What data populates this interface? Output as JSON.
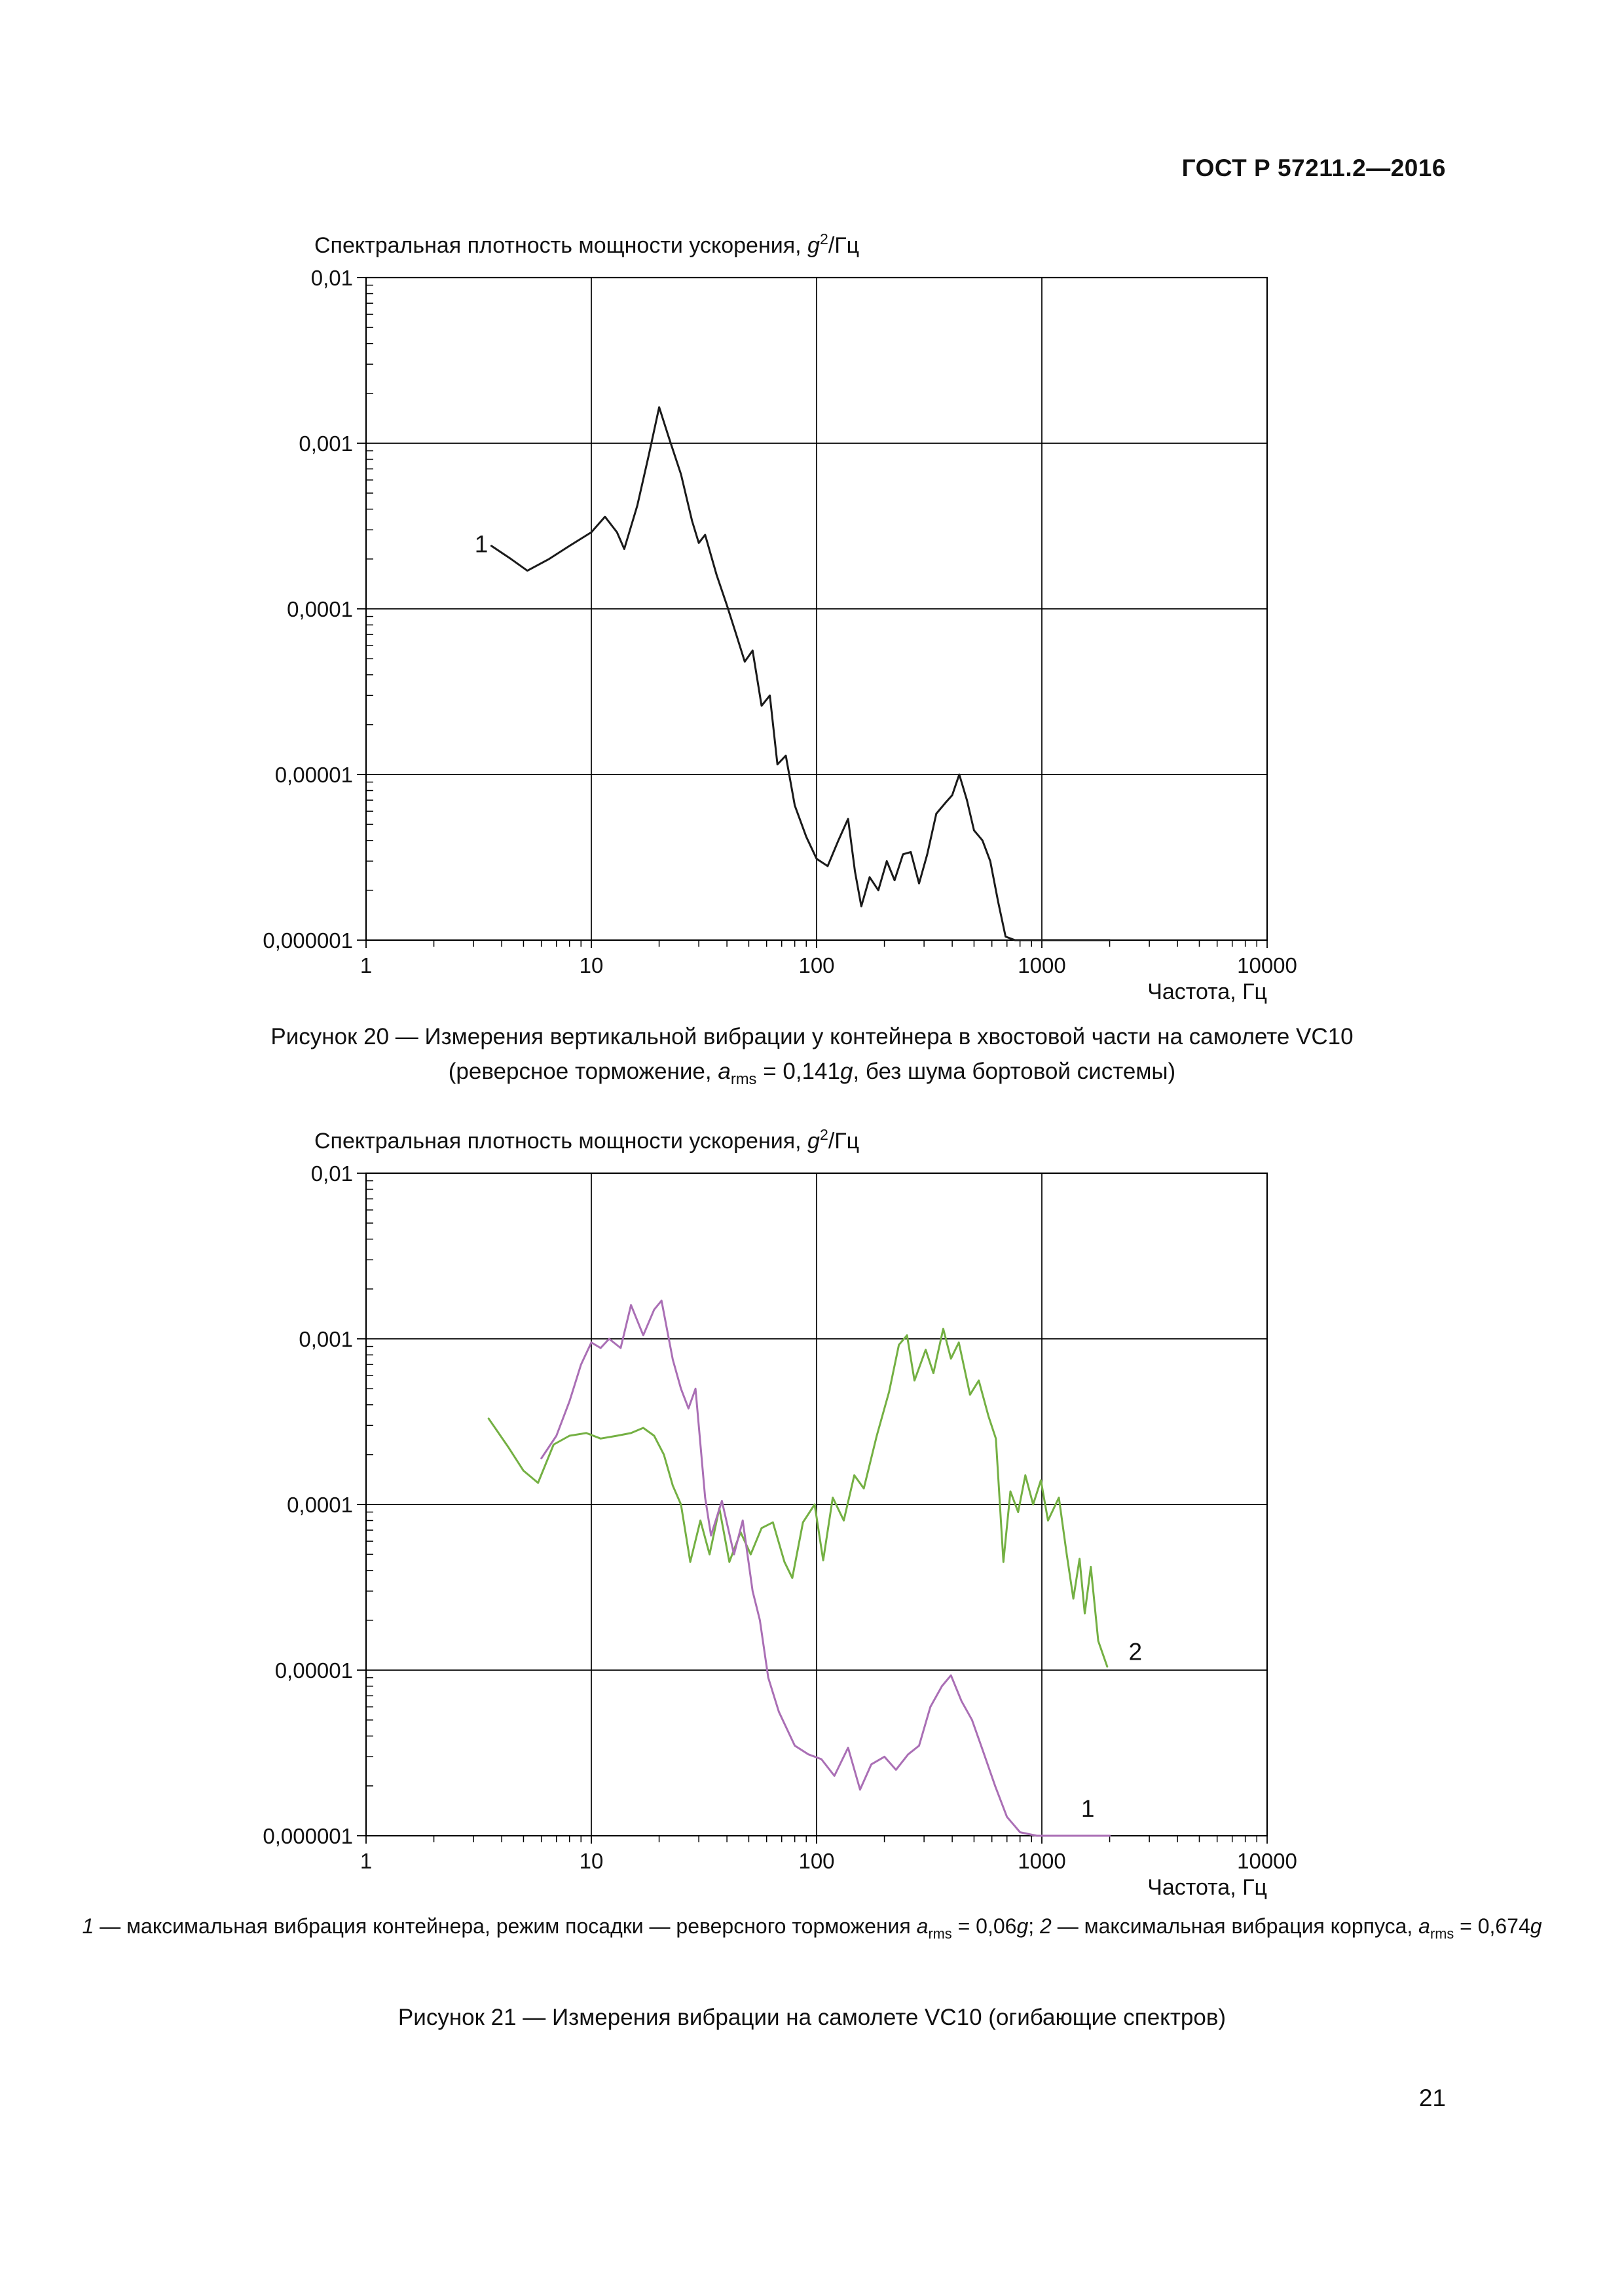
{
  "page": {
    "header": "ГОСТ Р 57211.2—2016",
    "page_number": "21"
  },
  "chart_title": {
    "text": "Спектральная плотность мощности ускорения, ",
    "var": "g",
    "sup": "2",
    "unit": "/Гц"
  },
  "figure20": {
    "caption_line1": "Рисунок 20 — Измерения вертикальной вибрации у контейнера в хвостовой части на самолете VC10",
    "caption2": {
      "p1": "(реверсное торможение, ",
      "a": "a",
      "sub": "rms",
      "p2": " = 0,141",
      "g": "g",
      "p3": ", без шума бортовой системы)"
    }
  },
  "figure21": {
    "legend": {
      "n1": "1",
      "t1": " — максимальная вибрация контейнера, режим посадки — реверсного торможения ",
      "a1": "a",
      "sub1": "rms",
      "v1": " = 0,06",
      "g1": "g",
      "sep": "; ",
      "n2": "2",
      "t2": " — максимальная вибрация корпуса, ",
      "a2": "a",
      "sub2": "rms",
      "v2": " = 0,674",
      "g2": "g"
    },
    "caption": "Рисунок 21 — Измерения вибрации на самолете VC10 (огибающие спектров)"
  },
  "chart_data": [
    {
      "type": "line",
      "title": "Спектральная плотность мощности ускорения, g²/Гц",
      "xlabel": "Частота, Гц",
      "ylabel": "Спектральная плотность мощности ускорения, g²/Гц",
      "xscale": "log",
      "yscale": "log",
      "xlim": [
        1,
        10000
      ],
      "ylim": [
        1e-06,
        0.01
      ],
      "x_ticks": [
        "1",
        "10",
        "100",
        "1000",
        "10000"
      ],
      "y_ticks": [
        "0,01",
        "0,001",
        "0,0001",
        "0,00001",
        "0,000001"
      ],
      "grid": true,
      "legend_position": "none",
      "series": [
        {
          "name": "1",
          "color": "#1a1a1a",
          "points": [
            [
              3.6,
              0.00024
            ],
            [
              4.4,
              0.0002
            ],
            [
              5.2,
              0.00017
            ],
            [
              6.5,
              0.0002
            ],
            [
              8,
              0.00024
            ],
            [
              10,
              0.00029
            ],
            [
              11.5,
              0.00036
            ],
            [
              13,
              0.00029
            ],
            [
              14,
              0.00023
            ],
            [
              16,
              0.00042
            ],
            [
              18,
              0.00085
            ],
            [
              20,
              0.00165
            ],
            [
              22,
              0.0011
            ],
            [
              25,
              0.00065
            ],
            [
              28,
              0.00034
            ],
            [
              30,
              0.00025
            ],
            [
              32,
              0.00028
            ],
            [
              36,
              0.00016
            ],
            [
              40,
              0.000105
            ],
            [
              44,
              7e-05
            ],
            [
              48,
              4.8e-05
            ],
            [
              52,
              5.6e-05
            ],
            [
              57,
              2.6e-05
            ],
            [
              62,
              3e-05
            ],
            [
              67,
              1.15e-05
            ],
            [
              73,
              1.3e-05
            ],
            [
              80,
              6.5e-06
            ],
            [
              90,
              4.2e-06
            ],
            [
              100,
              3.1e-06
            ],
            [
              112,
              2.8e-06
            ],
            [
              125,
              4e-06
            ],
            [
              138,
              5.4e-06
            ],
            [
              148,
              2.6e-06
            ],
            [
              158,
              1.6e-06
            ],
            [
              172,
              2.4e-06
            ],
            [
              188,
              2e-06
            ],
            [
              205,
              3e-06
            ],
            [
              222,
              2.3e-06
            ],
            [
              242,
              3.3e-06
            ],
            [
              262,
              3.4e-06
            ],
            [
              285,
              2.2e-06
            ],
            [
              310,
              3.3e-06
            ],
            [
              340,
              5.8e-06
            ],
            [
              375,
              6.8e-06
            ],
            [
              400,
              7.5e-06
            ],
            [
              430,
              1e-05
            ],
            [
              465,
              7e-06
            ],
            [
              500,
              4.6e-06
            ],
            [
              545,
              4e-06
            ],
            [
              590,
              3e-06
            ],
            [
              640,
              1.7e-06
            ],
            [
              690,
              1.05e-06
            ],
            [
              760,
              1e-06
            ],
            [
              900,
              1e-06
            ],
            [
              1200,
              1e-06
            ],
            [
              1600,
              1e-06
            ],
            [
              2000,
              1e-06
            ]
          ]
        }
      ],
      "annotations": [
        {
          "text": "1",
          "x": 3.25,
          "y": 0.00022
        }
      ]
    },
    {
      "type": "line",
      "title": "Спектральная плотность мощности ускорения, g²/Гц",
      "xlabel": "Частота, Гц",
      "ylabel": "Спектральная плотность мощности ускорения, g²/Гц",
      "xscale": "log",
      "yscale": "log",
      "xlim": [
        1,
        10000
      ],
      "ylim": [
        1e-06,
        0.01
      ],
      "x_ticks": [
        "1",
        "10",
        "100",
        "1000",
        "10000"
      ],
      "y_ticks": [
        "0,01",
        "0,001",
        "0,0001",
        "0,00001",
        "0,000001"
      ],
      "grid": true,
      "legend_position": "none",
      "series": [
        {
          "name": "2",
          "color": "#74b043",
          "points": [
            [
              3.5,
              0.00033
            ],
            [
              4.3,
              0.00022
            ],
            [
              5,
              0.00016
            ],
            [
              5.8,
              0.000135
            ],
            [
              6.8,
              0.00023
            ],
            [
              8,
              0.00026
            ],
            [
              9.5,
              0.00027
            ],
            [
              11,
              0.00025
            ],
            [
              13,
              0.00026
            ],
            [
              15,
              0.00027
            ],
            [
              17,
              0.00029
            ],
            [
              19,
              0.00026
            ],
            [
              21,
              0.0002
            ],
            [
              23,
              0.00013
            ],
            [
              25,
              0.0001
            ],
            [
              27.5,
              4.5e-05
            ],
            [
              30.5,
              8e-05
            ],
            [
              33.5,
              5e-05
            ],
            [
              37,
              9.5e-05
            ],
            [
              41,
              4.5e-05
            ],
            [
              46,
              6.8e-05
            ],
            [
              51,
              5e-05
            ],
            [
              57,
              7.2e-05
            ],
            [
              64,
              7.8e-05
            ],
            [
              72,
              4.5e-05
            ],
            [
              78,
              3.6e-05
            ],
            [
              87,
              7.8e-05
            ],
            [
              98,
              0.0001
            ],
            [
              107,
              4.6e-05
            ],
            [
              118,
              0.00011
            ],
            [
              132,
              8e-05
            ],
            [
              147,
              0.00015
            ],
            [
              162,
              0.000125
            ],
            [
              185,
              0.00026
            ],
            [
              210,
              0.00048
            ],
            [
              232,
              0.00092
            ],
            [
              252,
              0.00105
            ],
            [
              272,
              0.00056
            ],
            [
              305,
              0.00086
            ],
            [
              330,
              0.00062
            ],
            [
              365,
              0.00115
            ],
            [
              395,
              0.00076
            ],
            [
              428,
              0.00095
            ],
            [
              480,
              0.00046
            ],
            [
              525,
              0.00056
            ],
            [
              580,
              0.00034
            ],
            [
              625,
              0.00025
            ],
            [
              675,
              4.5e-05
            ],
            [
              725,
              0.00012
            ],
            [
              785,
              9e-05
            ],
            [
              845,
              0.00015
            ],
            [
              915,
              0.0001
            ],
            [
              990,
              0.00014
            ],
            [
              1065,
              8e-05
            ],
            [
              1190,
              0.00011
            ],
            [
              1290,
              5e-05
            ],
            [
              1380,
              2.7e-05
            ],
            [
              1470,
              4.7e-05
            ],
            [
              1550,
              2.2e-05
            ],
            [
              1650,
              4.2e-05
            ],
            [
              1780,
              1.5e-05
            ],
            [
              1950,
              1.05e-05
            ]
          ]
        },
        {
          "name": "1",
          "color": "#aa6fb5",
          "points": [
            [
              6,
              0.00019
            ],
            [
              7,
              0.00026
            ],
            [
              8,
              0.00042
            ],
            [
              9,
              0.0007
            ],
            [
              10,
              0.00095
            ],
            [
              11,
              0.00088
            ],
            [
              12,
              0.001
            ],
            [
              13.5,
              0.00088
            ],
            [
              15,
              0.0016
            ],
            [
              17,
              0.00105
            ],
            [
              19,
              0.0015
            ],
            [
              20.5,
              0.0017
            ],
            [
              23,
              0.00075
            ],
            [
              25,
              0.0005
            ],
            [
              27,
              0.00038
            ],
            [
              29,
              0.0005
            ],
            [
              32,
              0.00011
            ],
            [
              34,
              6.5e-05
            ],
            [
              38,
              0.000105
            ],
            [
              43,
              5e-05
            ],
            [
              47,
              8e-05
            ],
            [
              52,
              3e-05
            ],
            [
              56,
              2e-05
            ],
            [
              61,
              9e-06
            ],
            [
              68,
              5.6e-06
            ],
            [
              80,
              3.5e-06
            ],
            [
              92,
              3.1e-06
            ],
            [
              105,
              2.9e-06
            ],
            [
              120,
              2.3e-06
            ],
            [
              138,
              3.4e-06
            ],
            [
              156,
              1.9e-06
            ],
            [
              175,
              2.7e-06
            ],
            [
              200,
              3e-06
            ],
            [
              225,
              2.5e-06
            ],
            [
              255,
              3.1e-06
            ],
            [
              285,
              3.5e-06
            ],
            [
              320,
              6e-06
            ],
            [
              360,
              8e-06
            ],
            [
              395,
              9.3e-06
            ],
            [
              440,
              6.5e-06
            ],
            [
              490,
              5e-06
            ],
            [
              550,
              3.2e-06
            ],
            [
              620,
              2e-06
            ],
            [
              700,
              1.3e-06
            ],
            [
              800,
              1.05e-06
            ],
            [
              950,
              1e-06
            ],
            [
              1300,
              1e-06
            ],
            [
              1700,
              1e-06
            ],
            [
              2000,
              1e-06
            ]
          ]
        }
      ],
      "annotations": [
        {
          "text": "2",
          "x": 2600,
          "y": 1.15e-05
        },
        {
          "text": "1",
          "x": 1600,
          "y": 1.3e-06
        }
      ]
    }
  ]
}
